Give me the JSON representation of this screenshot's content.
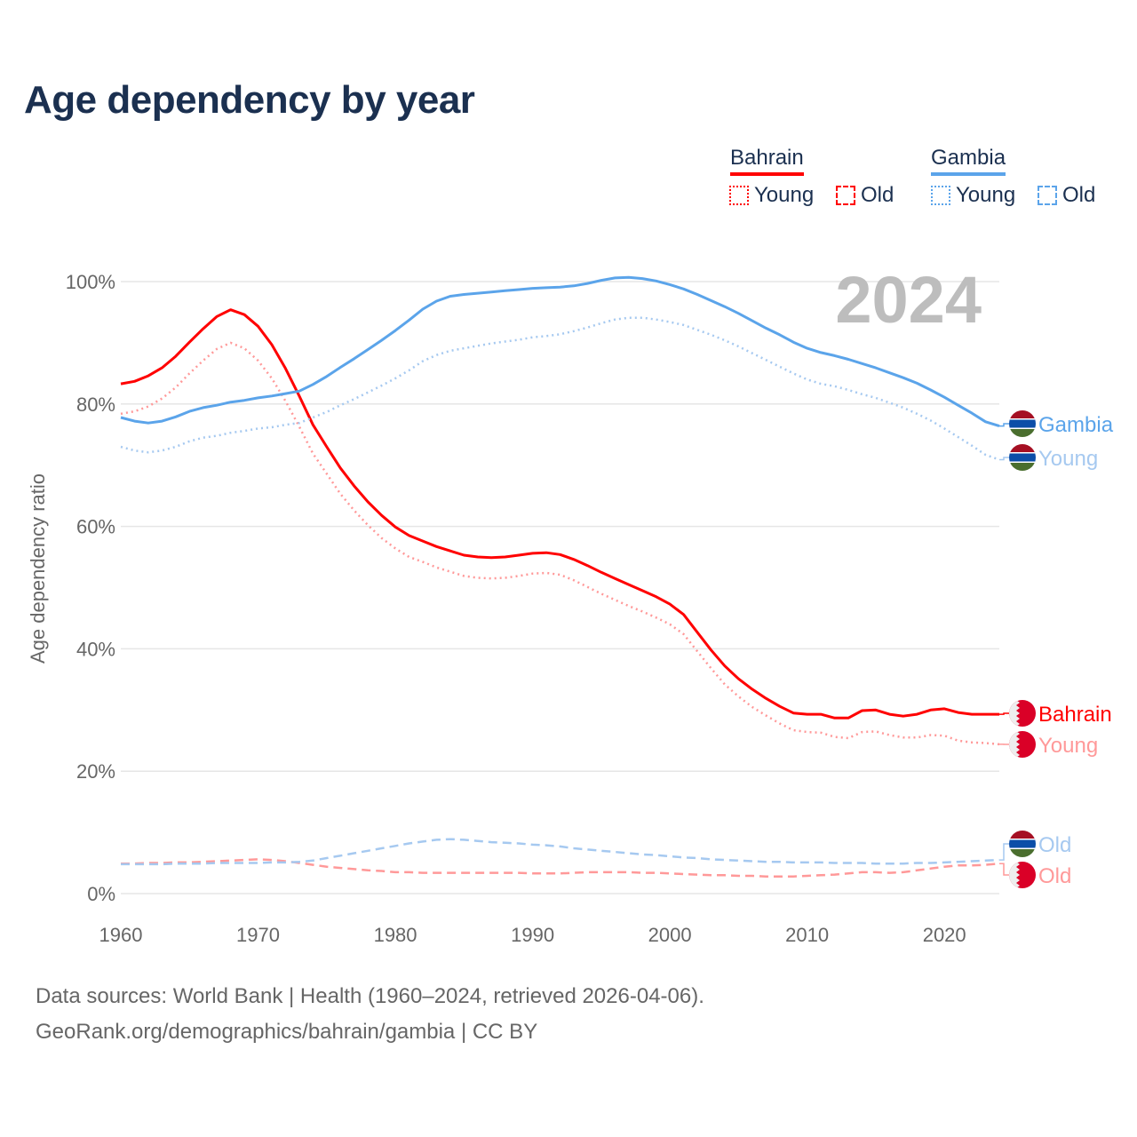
{
  "title": "Age dependency by year",
  "legend": {
    "groups": [
      {
        "name": "Bahrain",
        "color": "#ff0000",
        "light": "#ff9999",
        "items": [
          "Young",
          "Old"
        ]
      },
      {
        "name": "Gambia",
        "color": "#5ba4ea",
        "light": "#a6c9f0",
        "items": [
          "Young",
          "Old"
        ]
      }
    ]
  },
  "year_watermark": "2024",
  "end_labels": {
    "gambia_total": "Gambia",
    "gambia_young": "Young",
    "bahrain_total": "Bahrain",
    "bahrain_young": "Young",
    "gambia_old": "Old",
    "bahrain_old": "Old"
  },
  "footer": {
    "line1": "Data sources: World Bank | Health (1960–2024, retrieved 2026-04-06).",
    "line2": "GeoRank.org/demographics/bahrain/gambia | CC BY"
  },
  "chart_data": {
    "type": "line",
    "title": "Age dependency by year",
    "xlabel": "",
    "ylabel": "Age dependency ratio",
    "xlim": [
      1960,
      2024
    ],
    "ylim": [
      0,
      100
    ],
    "x_ticks": [
      "1960",
      "1970",
      "1980",
      "1990",
      "2000",
      "2010",
      "2020"
    ],
    "y_ticks": [
      "0%",
      "20%",
      "40%",
      "60%",
      "80%",
      "100%"
    ],
    "grid": true,
    "x_start": 1960,
    "series": [
      {
        "key": "bahrain_total",
        "name": "Bahrain",
        "style": "solid",
        "color": "#ff0000",
        "values": [
          83.3,
          83.7,
          84.6,
          85.9,
          87.8,
          90.1,
          92.3,
          94.3,
          95.4,
          94.6,
          92.7,
          89.7,
          85.8,
          81.3,
          76.6,
          73.0,
          69.5,
          66.6,
          64.0,
          61.8,
          59.9,
          58.5,
          57.6,
          56.7,
          56.0,
          55.3,
          55.0,
          54.9,
          55.0,
          55.3,
          55.6,
          55.7,
          55.4,
          54.6,
          53.6,
          52.5,
          51.5,
          50.5,
          49.5,
          48.5,
          47.3,
          45.6,
          42.7,
          39.8,
          37.2,
          35.1,
          33.4,
          31.9,
          30.6,
          29.5,
          29.3,
          29.3,
          28.7,
          28.7,
          29.9,
          30.0,
          29.3,
          29.0,
          29.3,
          30.0,
          30.2,
          29.6,
          29.3,
          29.3,
          29.3
        ]
      },
      {
        "key": "bahrain_young",
        "name": "Bahrain Young",
        "style": "dotted",
        "color": "#ff9999",
        "values": [
          78.4,
          78.8,
          79.6,
          80.9,
          82.7,
          85.0,
          87.1,
          89.0,
          90.0,
          89.1,
          87.1,
          84.2,
          80.5,
          76.3,
          71.9,
          68.6,
          65.3,
          62.6,
          60.2,
          58.1,
          56.4,
          55.0,
          54.2,
          53.3,
          52.6,
          51.9,
          51.6,
          51.5,
          51.6,
          51.9,
          52.3,
          52.4,
          52.1,
          51.2,
          50.1,
          49.0,
          48.0,
          47.0,
          46.1,
          45.1,
          44.0,
          42.4,
          39.6,
          36.8,
          34.2,
          32.2,
          30.5,
          29.1,
          27.8,
          26.7,
          26.4,
          26.3,
          25.6,
          25.4,
          26.4,
          26.5,
          25.9,
          25.5,
          25.5,
          25.9,
          25.8,
          25.0,
          24.7,
          24.6,
          24.4
        ]
      },
      {
        "key": "bahrain_old",
        "name": "Bahrain Old",
        "style": "dashed",
        "color": "#ff9999",
        "values": [
          4.9,
          4.9,
          5.0,
          5.0,
          5.1,
          5.1,
          5.2,
          5.3,
          5.4,
          5.5,
          5.6,
          5.5,
          5.3,
          5.0,
          4.7,
          4.4,
          4.2,
          4.0,
          3.8,
          3.7,
          3.5,
          3.5,
          3.4,
          3.4,
          3.4,
          3.4,
          3.4,
          3.4,
          3.4,
          3.4,
          3.3,
          3.3,
          3.3,
          3.4,
          3.5,
          3.5,
          3.5,
          3.5,
          3.4,
          3.4,
          3.3,
          3.2,
          3.1,
          3.0,
          3.0,
          2.9,
          2.9,
          2.8,
          2.8,
          2.8,
          2.9,
          3.0,
          3.1,
          3.3,
          3.5,
          3.5,
          3.4,
          3.5,
          3.8,
          4.1,
          4.4,
          4.6,
          4.6,
          4.7,
          4.9
        ]
      },
      {
        "key": "gambia_total",
        "name": "Gambia",
        "style": "solid",
        "color": "#5ba4ea",
        "values": [
          77.8,
          77.2,
          76.9,
          77.2,
          77.9,
          78.8,
          79.4,
          79.8,
          80.3,
          80.6,
          81.0,
          81.3,
          81.7,
          82.1,
          83.2,
          84.5,
          86.0,
          87.4,
          88.9,
          90.4,
          92.0,
          93.7,
          95.5,
          96.8,
          97.6,
          97.9,
          98.1,
          98.3,
          98.5,
          98.7,
          98.9,
          99.0,
          99.1,
          99.3,
          99.7,
          100.2,
          100.6,
          100.7,
          100.5,
          100.1,
          99.5,
          98.8,
          97.9,
          96.9,
          95.9,
          94.8,
          93.6,
          92.4,
          91.3,
          90.1,
          89.1,
          88.4,
          87.9,
          87.3,
          86.6,
          85.9,
          85.1,
          84.3,
          83.4,
          82.3,
          81.1,
          79.8,
          78.5,
          77.1,
          76.4
        ]
      },
      {
        "key": "gambia_young",
        "name": "Gambia Young",
        "style": "dotted",
        "color": "#a6c9f0",
        "values": [
          73.0,
          72.4,
          72.1,
          72.4,
          73.0,
          73.9,
          74.5,
          74.8,
          75.3,
          75.6,
          76.0,
          76.2,
          76.6,
          76.9,
          77.8,
          78.7,
          79.8,
          80.8,
          81.9,
          83.0,
          84.2,
          85.5,
          87.0,
          88.0,
          88.7,
          89.1,
          89.5,
          89.9,
          90.2,
          90.5,
          90.9,
          91.1,
          91.4,
          91.9,
          92.5,
          93.2,
          93.8,
          94.1,
          94.1,
          93.8,
          93.4,
          92.9,
          92.1,
          91.3,
          90.4,
          89.4,
          88.3,
          87.2,
          86.1,
          85.0,
          84.0,
          83.3,
          82.9,
          82.3,
          81.6,
          81.0,
          80.2,
          79.4,
          78.4,
          77.3,
          76.0,
          74.6,
          73.2,
          71.7,
          70.9
        ]
      },
      {
        "key": "gambia_old",
        "name": "Gambia Old",
        "style": "dashed",
        "color": "#a6c9f0",
        "values": [
          4.8,
          4.8,
          4.8,
          4.8,
          4.9,
          4.9,
          4.9,
          5.0,
          5.0,
          5.0,
          5.0,
          5.1,
          5.1,
          5.2,
          5.4,
          5.8,
          6.2,
          6.6,
          7.0,
          7.4,
          7.8,
          8.2,
          8.5,
          8.8,
          8.9,
          8.8,
          8.6,
          8.4,
          8.3,
          8.2,
          8.0,
          7.9,
          7.7,
          7.4,
          7.2,
          7.0,
          6.8,
          6.6,
          6.4,
          6.3,
          6.1,
          5.9,
          5.8,
          5.6,
          5.5,
          5.4,
          5.3,
          5.2,
          5.2,
          5.1,
          5.1,
          5.1,
          5.0,
          5.0,
          5.0,
          4.9,
          4.9,
          4.9,
          5.0,
          5.0,
          5.1,
          5.2,
          5.3,
          5.4,
          5.5
        ]
      }
    ]
  }
}
